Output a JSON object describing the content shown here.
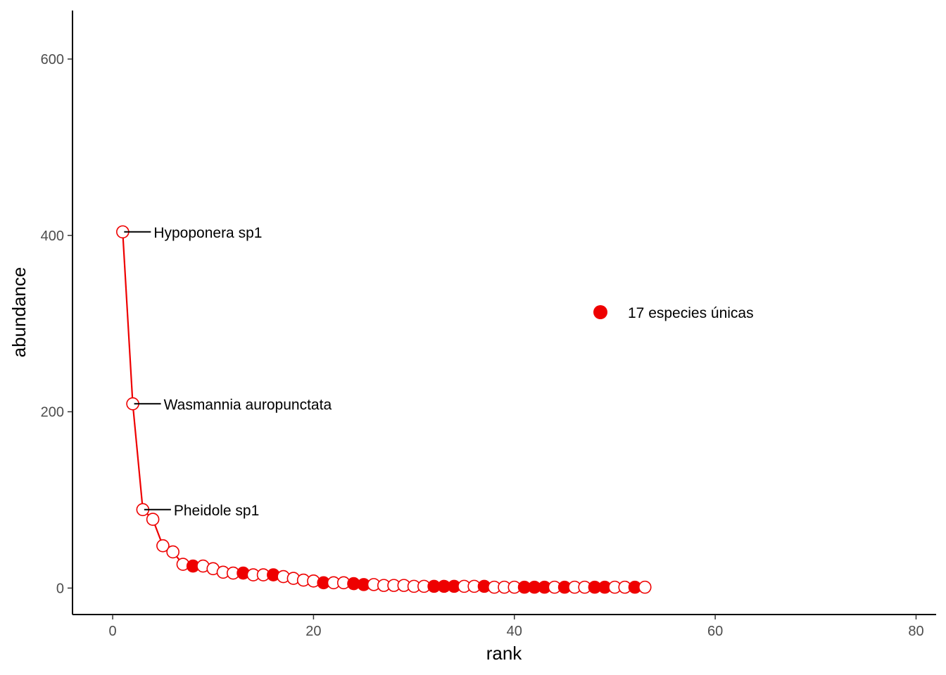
{
  "chart_data": {
    "type": "line",
    "xlabel": "rank",
    "ylabel": "abundance",
    "xlim": [
      -4,
      82
    ],
    "ylim": [
      -30,
      655
    ],
    "x_ticks": [
      0,
      20,
      40,
      60,
      80
    ],
    "y_ticks": [
      0,
      200,
      400,
      600
    ],
    "grid": false,
    "color": "#ee0000",
    "series": [
      {
        "x": [
          1,
          2,
          3,
          4,
          5,
          6,
          7,
          8,
          9,
          10,
          11,
          12,
          13,
          14,
          15,
          16,
          17,
          18,
          19,
          20,
          21,
          22,
          23,
          24,
          25,
          26,
          27,
          28,
          29,
          30,
          31,
          32,
          33,
          34,
          35,
          36,
          37,
          38,
          39,
          40,
          41,
          42,
          43,
          44,
          45,
          46,
          47,
          48,
          49,
          50,
          51,
          52,
          53
        ],
        "values": [
          404,
          209,
          89,
          78,
          48,
          41,
          27,
          25,
          25,
          22,
          18,
          17,
          17,
          15,
          15,
          15,
          13,
          11,
          9,
          8,
          6,
          6,
          6,
          5,
          4,
          4,
          3,
          3,
          3,
          2,
          2,
          2,
          2,
          2,
          2,
          2,
          2,
          1,
          1,
          1,
          1,
          1,
          1,
          1,
          1,
          1,
          1,
          1,
          1,
          1,
          1,
          1,
          1
        ],
        "unique": [
          false,
          false,
          false,
          false,
          false,
          false,
          false,
          true,
          false,
          false,
          false,
          false,
          true,
          false,
          false,
          true,
          false,
          false,
          false,
          false,
          true,
          false,
          false,
          true,
          true,
          false,
          false,
          false,
          false,
          false,
          false,
          true,
          true,
          true,
          false,
          false,
          true,
          false,
          false,
          false,
          true,
          true,
          true,
          false,
          true,
          false,
          false,
          true,
          true,
          false,
          false,
          true,
          false
        ]
      }
    ],
    "annotations": [
      {
        "text": "Hypoponera sp1",
        "x": 1,
        "y": 404
      },
      {
        "text": "Wasmannia auropunctata",
        "x": 2,
        "y": 209
      },
      {
        "text": "Pheidole sp1",
        "x": 3,
        "y": 89
      }
    ],
    "legend": {
      "label": "17 especies únicas",
      "position": "right"
    }
  }
}
